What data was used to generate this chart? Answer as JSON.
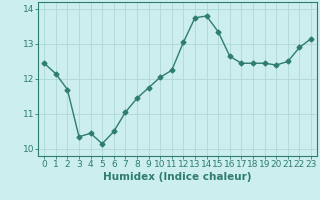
{
  "x": [
    0,
    1,
    2,
    3,
    4,
    5,
    6,
    7,
    8,
    9,
    10,
    11,
    12,
    13,
    14,
    15,
    16,
    17,
    18,
    19,
    20,
    21,
    22,
    23
  ],
  "y": [
    12.45,
    12.15,
    11.7,
    10.35,
    10.45,
    10.15,
    10.5,
    11.05,
    11.45,
    11.75,
    12.05,
    12.25,
    13.05,
    13.75,
    13.8,
    13.35,
    12.65,
    12.45,
    12.45,
    12.45,
    12.4,
    12.5,
    12.9,
    13.15
  ],
  "line_color": "#2e7d6e",
  "bg_color": "#cceeee",
  "grid_color": "#b0d8d8",
  "xlabel": "Humidex (Indice chaleur)",
  "ylim": [
    9.8,
    14.2
  ],
  "xlim": [
    -0.5,
    23.5
  ],
  "yticks": [
    10,
    11,
    12,
    13,
    14
  ],
  "xticks": [
    0,
    1,
    2,
    3,
    4,
    5,
    6,
    7,
    8,
    9,
    10,
    11,
    12,
    13,
    14,
    15,
    16,
    17,
    18,
    19,
    20,
    21,
    22,
    23
  ],
  "marker": "D",
  "marker_size": 2.5,
  "line_width": 1.0,
  "xlabel_fontsize": 7.5,
  "tick_fontsize": 6.5
}
